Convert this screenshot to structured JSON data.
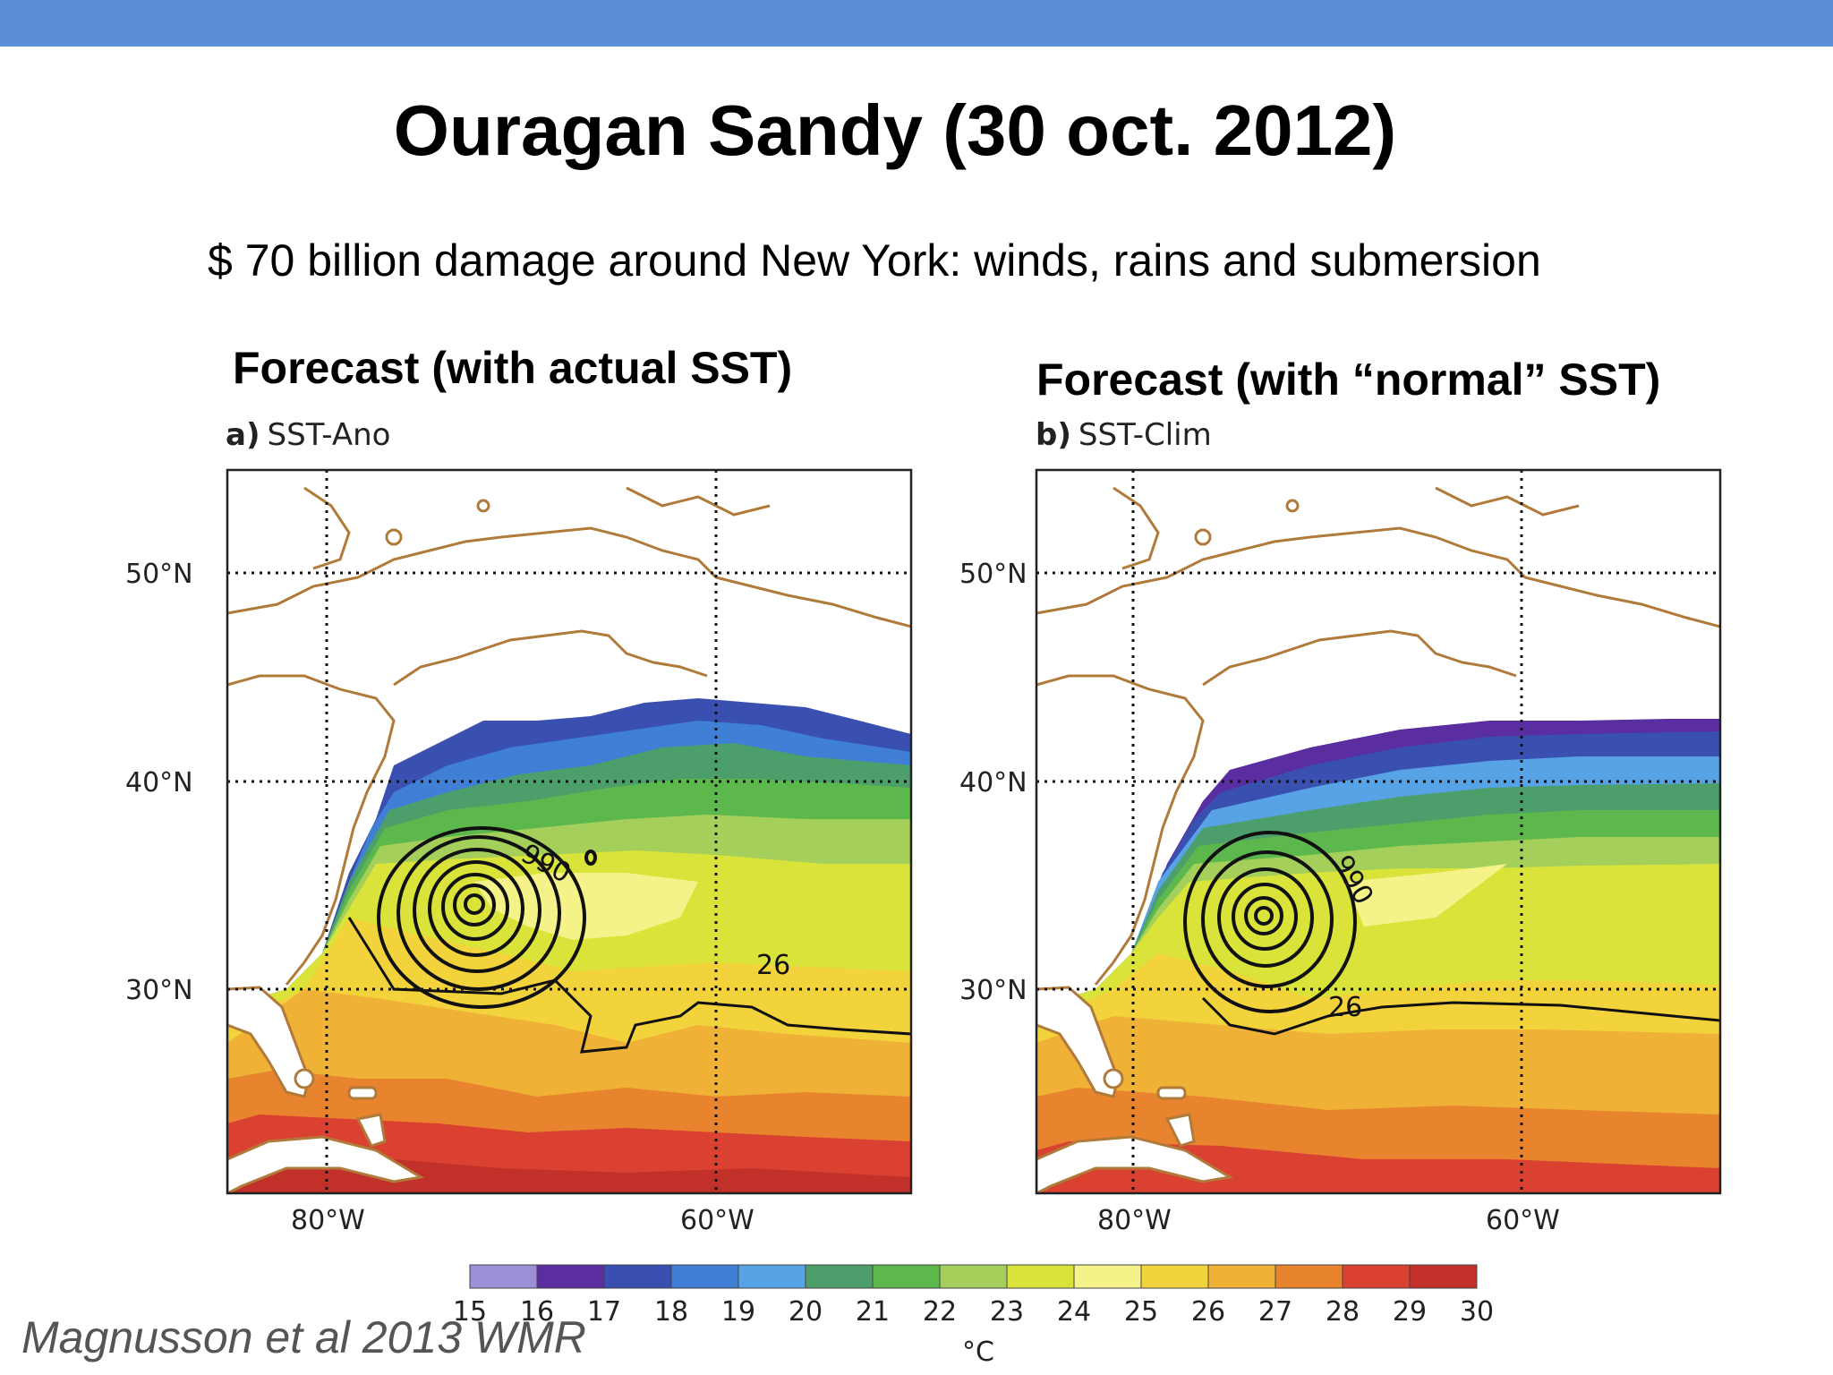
{
  "slide": {
    "title": "Ouragan Sandy (30 oct. 2012)",
    "subtitle": "$ 70 billion damage around New York: winds, rains and submersion",
    "citation": "Magnusson et al 2013 WMR",
    "accent_color": "#5b8ed8"
  },
  "panels": [
    {
      "heading": "Forecast (with actual SST)",
      "letter": "a)",
      "tag": "SST-Ano",
      "lat_labels": [
        "50°N",
        "40°N",
        "30°N"
      ],
      "lon_labels": [
        "80°W",
        "60°W"
      ],
      "contour_labels": [
        "990",
        "26"
      ]
    },
    {
      "heading": "Forecast (with “normal” SST)",
      "letter": "b)",
      "tag": "SST-Clim",
      "lat_labels": [
        "50°N",
        "40°N",
        "30°N"
      ],
      "lon_labels": [
        "80°W",
        "60°W"
      ],
      "contour_labels": [
        "990",
        "26"
      ]
    }
  ],
  "colorbar": {
    "unit": "°C",
    "ticks": [
      "15",
      "16",
      "17",
      "18",
      "19",
      "20",
      "21",
      "22",
      "23",
      "24",
      "25",
      "26",
      "27",
      "28",
      "29",
      "30"
    ],
    "colors": [
      "#9b8fd8",
      "#5a2da0",
      "#3a50b0",
      "#3f7fd6",
      "#58a2e6",
      "#4c9e6a",
      "#5cb84c",
      "#a4cf5a",
      "#d9e33a",
      "#f6f28a",
      "#f3d33c",
      "#efb236",
      "#e8842e",
      "#db4130",
      "#c2302a"
    ]
  }
}
